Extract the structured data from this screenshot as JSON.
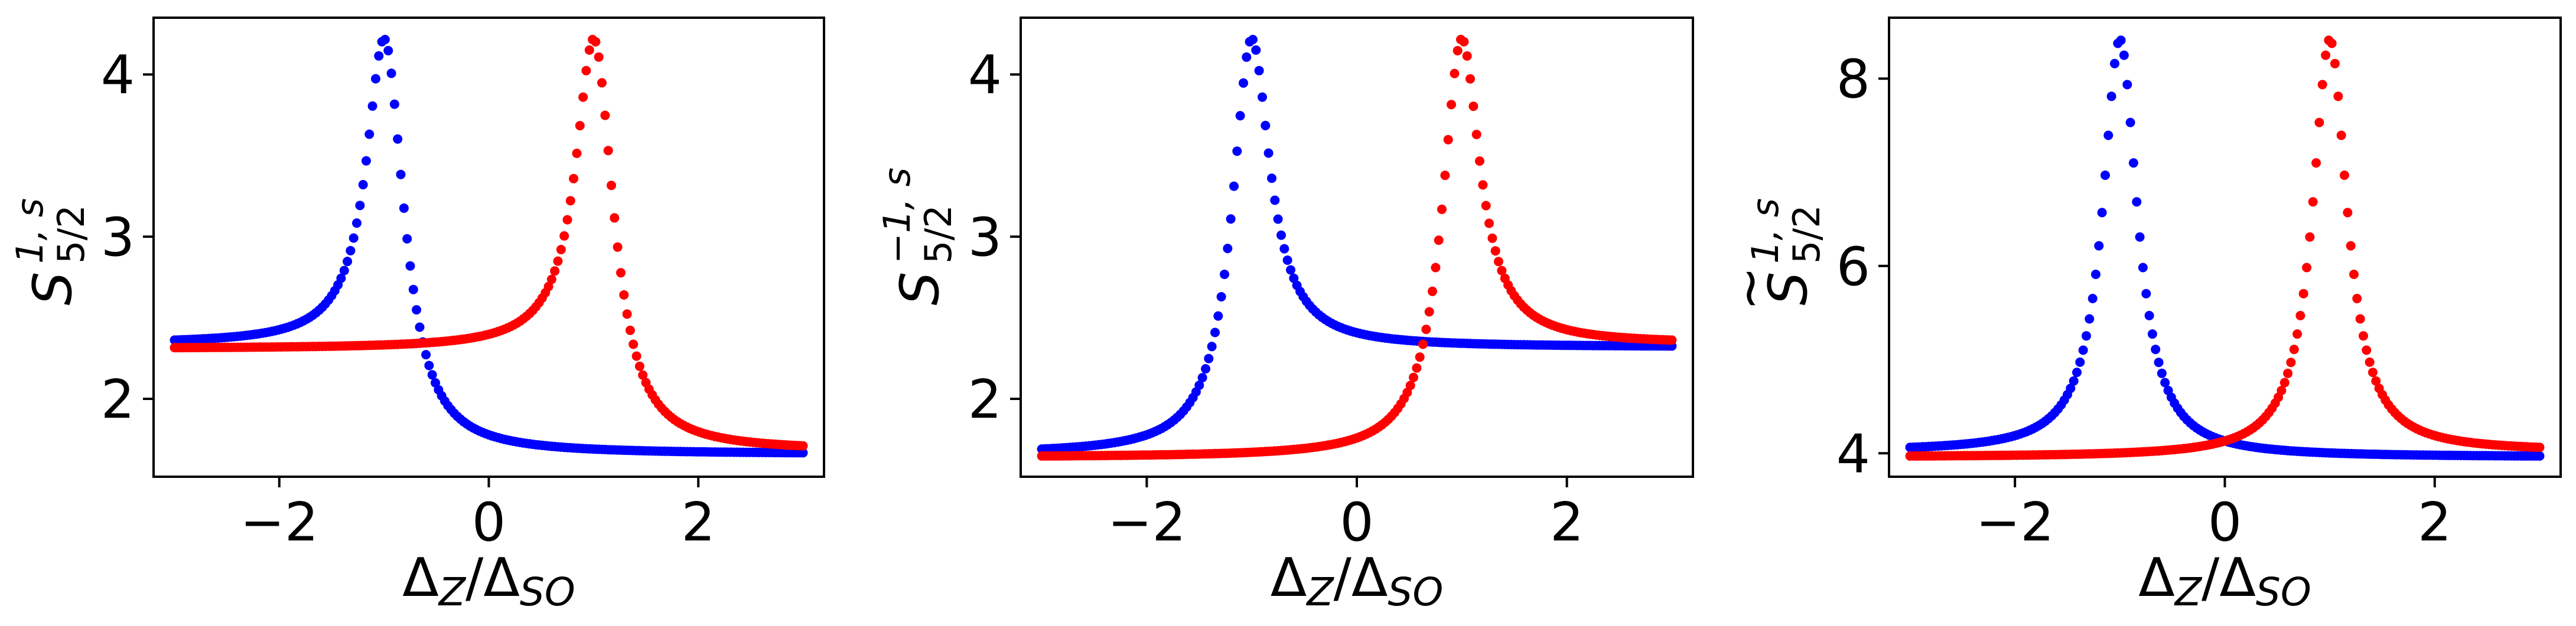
{
  "chart_data": [
    {
      "type": "scatter",
      "xlabel": "Δ_Z/Δ_SO",
      "ylabel": {
        "main": "S",
        "tilde": false,
        "sub": "5/2",
        "sup": "1, s"
      },
      "xlim": [
        -3.2,
        3.2
      ],
      "ylim": [
        1.52,
        4.35
      ],
      "xticks": [
        -2,
        0,
        2
      ],
      "xtick_labels": [
        "−2",
        "0",
        "2"
      ],
      "yticks": [
        2,
        3,
        4
      ],
      "ytick_labels": [
        "2",
        "3",
        "4"
      ],
      "grid": false,
      "series": [
        {
          "color": "#0000ff",
          "peak_x": -1.0,
          "peak_y": 4.22,
          "left_y": 2.34,
          "right_y": 1.66,
          "width": 0.22
        },
        {
          "color": "#ff0000",
          "peak_x": 1.0,
          "peak_y": 4.22,
          "left_y": 2.31,
          "right_y": 1.68,
          "width": 0.22
        }
      ]
    },
    {
      "type": "scatter",
      "xlabel": "Δ_Z/Δ_SO",
      "ylabel": {
        "main": "S",
        "tilde": false,
        "sub": "5/2",
        "sup": "−1, s"
      },
      "xlim": [
        -3.2,
        3.2
      ],
      "ylim": [
        1.52,
        4.35
      ],
      "xticks": [
        -2,
        0,
        2
      ],
      "xtick_labels": [
        "−2",
        "0",
        "2"
      ],
      "yticks": [
        2,
        3,
        4
      ],
      "ytick_labels": [
        "2",
        "3",
        "4"
      ],
      "grid": false,
      "series": [
        {
          "color": "#0000ff",
          "peak_x": -1.0,
          "peak_y": 4.22,
          "left_y": 1.66,
          "right_y": 2.32,
          "width": 0.22
        },
        {
          "color": "#ff0000",
          "peak_x": 1.0,
          "peak_y": 4.22,
          "left_y": 1.64,
          "right_y": 2.34,
          "width": 0.22
        }
      ]
    },
    {
      "type": "scatter",
      "xlabel": "Δ_Z/Δ_SO",
      "ylabel": {
        "main": "S",
        "tilde": true,
        "sub": "5/2",
        "sup": "1, s"
      },
      "xlim": [
        -3.2,
        3.2
      ],
      "ylim": [
        3.75,
        8.65
      ],
      "xticks": [
        -2,
        0,
        2
      ],
      "xtick_labels": [
        "−2",
        "0",
        "2"
      ],
      "yticks": [
        4,
        6,
        8
      ],
      "ytick_labels": [
        "4",
        "6",
        "8"
      ],
      "grid": false,
      "series": [
        {
          "color": "#0000ff",
          "peak_x": -1.0,
          "peak_y": 8.42,
          "left_y": 4.02,
          "right_y": 3.96,
          "width": 0.2
        },
        {
          "color": "#ff0000",
          "peak_x": 1.0,
          "peak_y": 8.42,
          "left_y": 3.96,
          "right_y": 4.02,
          "width": 0.2
        }
      ]
    }
  ]
}
